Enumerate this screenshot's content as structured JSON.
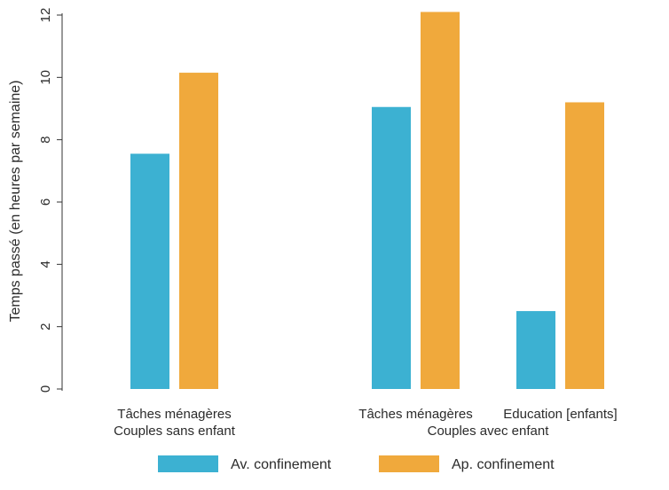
{
  "chart_data": {
    "type": "bar",
    "title": "",
    "xlabel": "",
    "ylabel": "Temps passé (en heures par semaine)",
    "ylim": [
      0,
      12
    ],
    "yticks": [
      0,
      2,
      4,
      6,
      8,
      10,
      12
    ],
    "grid": false,
    "legend_position": "bottom",
    "categories": [
      {
        "label": "Tâches ménagères",
        "group": "Couples sans enfant"
      },
      {
        "label": "Tâches ménagères",
        "group": "Couples avec enfant"
      },
      {
        "label": "Education [enfants]",
        "group": "Couples avec enfant"
      }
    ],
    "groups": [
      "Couples sans enfant",
      "Couples avec enfant"
    ],
    "series": [
      {
        "name": "Av. confinement",
        "color": "#3CB1D2",
        "values": [
          7.55,
          9.05,
          2.5
        ]
      },
      {
        "name": "Ap. confinement",
        "color": "#F0A93C",
        "values": [
          10.15,
          12.1,
          9.2
        ]
      }
    ]
  }
}
